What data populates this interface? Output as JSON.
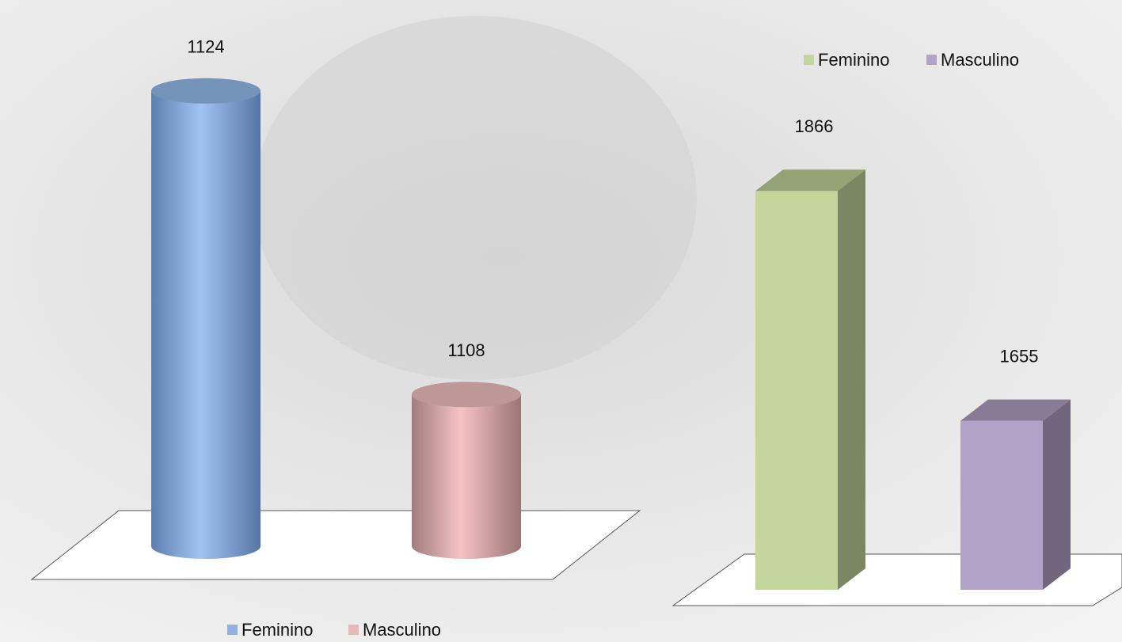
{
  "chart_data": [
    {
      "type": "cylinder",
      "series": [
        {
          "name": "Feminino",
          "color": "#8fb4e3",
          "values": [
            1124
          ]
        },
        {
          "name": "Masculino",
          "color": "#e6b9b8",
          "values": [
            1108
          ]
        }
      ],
      "ylim": [
        1100,
        1130
      ],
      "legend": "bottom"
    },
    {
      "type": "box3d",
      "series": [
        {
          "name": "Feminino",
          "color": "#c3d69b",
          "values": [
            1866
          ]
        },
        {
          "name": "Masculino",
          "color": "#b3a2c7",
          "values": [
            1655
          ]
        }
      ],
      "ylim": [
        1500,
        1880
      ],
      "legend": "top"
    }
  ]
}
